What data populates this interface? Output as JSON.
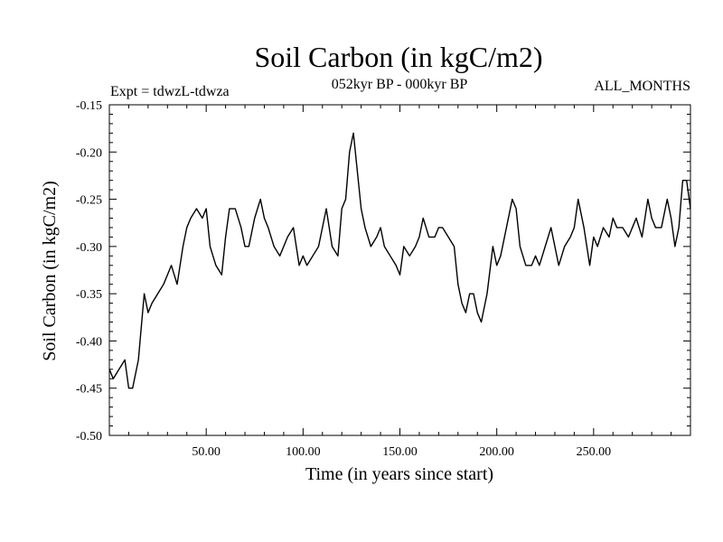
{
  "chart_data": {
    "type": "line",
    "title": "Soil Carbon (in kgC/m2)",
    "left_note": "Expt = tdwzL-tdwza",
    "center_note": "052kyr BP - 000kyr BP",
    "right_note": "ALL_MONTHS",
    "xlabel": "Time (in years since start)",
    "ylabel": "Soil Carbon (in kgC/m2)",
    "xlim": [
      0,
      300
    ],
    "ylim": [
      -0.5,
      -0.15
    ],
    "x_ticks": [
      {
        "value": 50,
        "label": "50.00"
      },
      {
        "value": 100,
        "label": "100.00"
      },
      {
        "value": 150,
        "label": "150.00"
      },
      {
        "value": 200,
        "label": "200.00"
      },
      {
        "value": 250,
        "label": "250.00"
      }
    ],
    "y_ticks": [
      {
        "value": -0.15,
        "label": "-0.15"
      },
      {
        "value": -0.2,
        "label": "-0.20"
      },
      {
        "value": -0.25,
        "label": "-0.25"
      },
      {
        "value": -0.3,
        "label": "-0.30"
      },
      {
        "value": -0.35,
        "label": "-0.35"
      },
      {
        "value": -0.4,
        "label": "-0.40"
      },
      {
        "value": -0.45,
        "label": "-0.45"
      },
      {
        "value": -0.5,
        "label": "-0.50"
      }
    ],
    "grid": false,
    "series": [
      {
        "color": "#000000",
        "x": [
          0,
          2,
          5,
          8,
          10,
          12,
          15,
          18,
          20,
          22,
          25,
          28,
          30,
          32,
          35,
          38,
          40,
          42,
          45,
          48,
          50,
          52,
          55,
          58,
          60,
          62,
          65,
          68,
          70,
          72,
          75,
          78,
          80,
          82,
          85,
          88,
          90,
          92,
          95,
          98,
          100,
          102,
          105,
          108,
          110,
          112,
          115,
          118,
          120,
          122,
          124,
          126,
          128,
          130,
          132,
          135,
          138,
          140,
          142,
          145,
          148,
          150,
          152,
          155,
          158,
          160,
          162,
          165,
          168,
          170,
          172,
          175,
          178,
          180,
          182,
          184,
          186,
          188,
          190,
          192,
          195,
          198,
          200,
          202,
          205,
          208,
          210,
          212,
          215,
          218,
          220,
          222,
          225,
          228,
          230,
          232,
          235,
          238,
          240,
          242,
          245,
          248,
          250,
          252,
          255,
          258,
          260,
          262,
          265,
          268,
          270,
          272,
          275,
          278,
          280,
          282,
          285,
          288,
          290,
          292,
          294,
          296,
          298,
          300
        ],
        "y": [
          -0.43,
          -0.44,
          -0.43,
          -0.42,
          -0.45,
          -0.45,
          -0.42,
          -0.35,
          -0.37,
          -0.36,
          -0.35,
          -0.34,
          -0.33,
          -0.32,
          -0.34,
          -0.3,
          -0.28,
          -0.27,
          -0.26,
          -0.27,
          -0.26,
          -0.3,
          -0.32,
          -0.33,
          -0.29,
          -0.26,
          -0.26,
          -0.28,
          -0.3,
          -0.3,
          -0.27,
          -0.25,
          -0.27,
          -0.28,
          -0.3,
          -0.31,
          -0.3,
          -0.29,
          -0.28,
          -0.32,
          -0.31,
          -0.32,
          -0.31,
          -0.3,
          -0.28,
          -0.26,
          -0.3,
          -0.31,
          -0.26,
          -0.25,
          -0.2,
          -0.18,
          -0.22,
          -0.26,
          -0.28,
          -0.3,
          -0.29,
          -0.28,
          -0.3,
          -0.31,
          -0.32,
          -0.33,
          -0.3,
          -0.31,
          -0.3,
          -0.29,
          -0.27,
          -0.29,
          -0.29,
          -0.28,
          -0.28,
          -0.29,
          -0.3,
          -0.34,
          -0.36,
          -0.37,
          -0.35,
          -0.35,
          -0.37,
          -0.38,
          -0.35,
          -0.3,
          -0.32,
          -0.31,
          -0.28,
          -0.25,
          -0.26,
          -0.3,
          -0.32,
          -0.32,
          -0.31,
          -0.32,
          -0.3,
          -0.28,
          -0.3,
          -0.32,
          -0.3,
          -0.29,
          -0.28,
          -0.25,
          -0.28,
          -0.32,
          -0.29,
          -0.3,
          -0.28,
          -0.29,
          -0.27,
          -0.28,
          -0.28,
          -0.29,
          -0.28,
          -0.27,
          -0.29,
          -0.25,
          -0.27,
          -0.28,
          -0.28,
          -0.25,
          -0.27,
          -0.3,
          -0.28,
          -0.23,
          -0.23,
          -0.26
        ]
      }
    ]
  }
}
